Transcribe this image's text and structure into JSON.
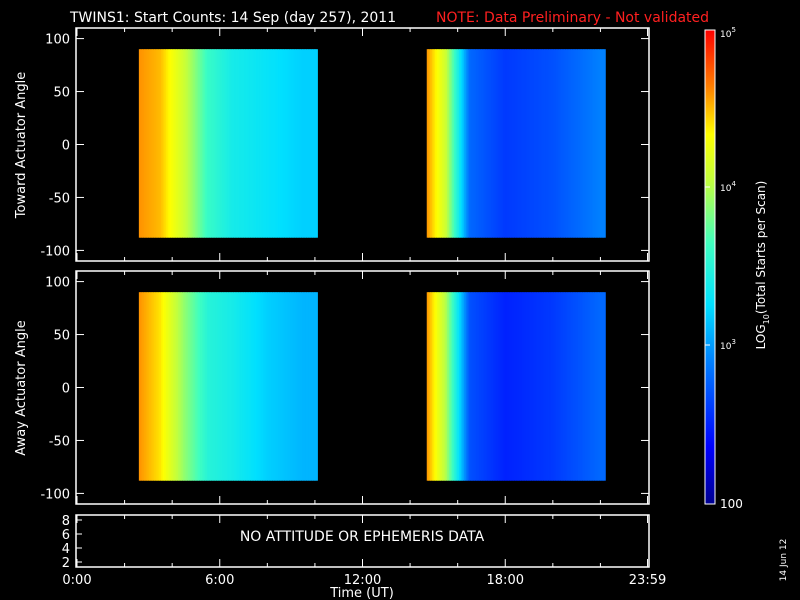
{
  "title": {
    "main": "TWINS1: Start Counts: 14 Sep (day 257), 2011",
    "note": "NOTE: Data Preliminary - Not validated"
  },
  "xaxis": {
    "label": "Time (UT)",
    "ticks": [
      "0:00",
      "6:00",
      "12:00",
      "18:00",
      "23:59"
    ],
    "range_hours": [
      0,
      24
    ]
  },
  "colorbar": {
    "label_prefix": "LOG",
    "label_sub": "10",
    "label_suffix": "(Total Starts per Scan)",
    "tick_100": "100",
    "tick_1e3_base": "10",
    "tick_1e3_exp": "3",
    "tick_1e4_base": "10",
    "tick_1e4_exp": "4",
    "tick_1e5_base": "10",
    "tick_1e5_exp": "5",
    "range_log10": [
      2,
      5
    ],
    "colormap": [
      "#00008f",
      "#0000ff",
      "#00bfff",
      "#00ffff",
      "#7fff7f",
      "#ffff00",
      "#ff7f00",
      "#ff0000",
      "#ff0000"
    ]
  },
  "footer": {
    "message": "NO ATTITUDE OR EPHEMERIS DATA",
    "yticks": [
      "2",
      "4",
      "6",
      "8"
    ],
    "date_stamp": "14 Jun 12"
  },
  "chart_data": [
    {
      "type": "heatmap",
      "title": "",
      "xlabel": "Time (UT)",
      "ylabel": "Toward Actuator Angle",
      "xlim": [
        0,
        24
      ],
      "ylim": [
        -110,
        110
      ],
      "yticks": [
        -100,
        -50,
        0,
        50,
        100
      ],
      "y_extent": [
        -88,
        90
      ],
      "data_intervals_hours": [
        [
          2.6,
          10.1
        ],
        [
          14.7,
          22.2
        ]
      ],
      "log10_counts_by_hour": [
        {
          "hour": 2.6,
          "value": 4.6
        },
        {
          "hour": 3.5,
          "value": 4.5
        },
        {
          "hour": 4.5,
          "value": 4.1
        },
        {
          "hour": 5.5,
          "value": 3.6
        },
        {
          "hour": 6.5,
          "value": 3.4
        },
        {
          "hour": 8.0,
          "value": 3.3
        },
        {
          "hour": 9.5,
          "value": 3.2
        },
        {
          "hour": 14.7,
          "value": 4.6
        },
        {
          "hour": 15.5,
          "value": 4.1
        },
        {
          "hour": 16.5,
          "value": 2.8
        },
        {
          "hour": 18.0,
          "value": 2.6
        },
        {
          "hour": 20.0,
          "value": 2.7
        },
        {
          "hour": 22.0,
          "value": 2.9
        }
      ]
    },
    {
      "type": "heatmap",
      "title": "",
      "xlabel": "Time (UT)",
      "ylabel": "Away Actuator Angle",
      "xlim": [
        0,
        24
      ],
      "ylim": [
        -110,
        110
      ],
      "yticks": [
        -100,
        -50,
        0,
        50,
        100
      ],
      "y_extent": [
        -88,
        90
      ],
      "data_intervals_hours": [
        [
          2.6,
          10.1
        ],
        [
          14.7,
          22.2
        ]
      ],
      "log10_counts_by_hour": [
        {
          "hour": 2.6,
          "value": 4.6
        },
        {
          "hour": 3.5,
          "value": 4.4
        },
        {
          "hour": 4.5,
          "value": 3.9
        },
        {
          "hour": 5.5,
          "value": 3.5
        },
        {
          "hour": 6.5,
          "value": 3.4
        },
        {
          "hour": 8.0,
          "value": 3.2
        },
        {
          "hour": 9.5,
          "value": 3.1
        },
        {
          "hour": 14.7,
          "value": 4.6
        },
        {
          "hour": 15.5,
          "value": 4.0
        },
        {
          "hour": 16.5,
          "value": 2.7
        },
        {
          "hour": 18.0,
          "value": 2.5
        },
        {
          "hour": 20.0,
          "value": 2.6
        },
        {
          "hour": 22.0,
          "value": 2.8
        }
      ]
    }
  ]
}
